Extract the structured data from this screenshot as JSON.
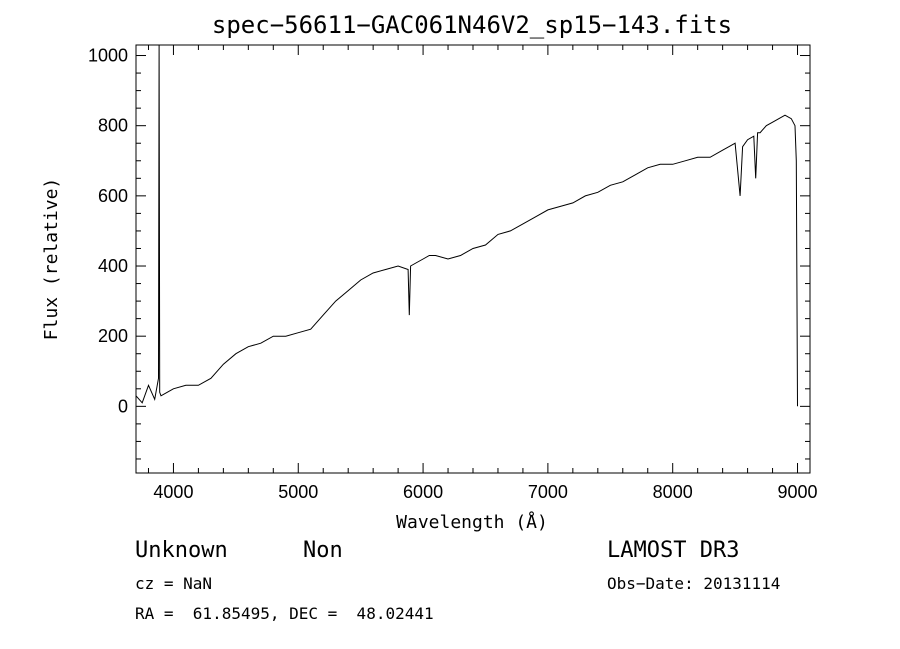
{
  "chart_data": {
    "type": "line",
    "title": "spec−56611−GAC061N46V2_sp15−143.fits",
    "xlabel": "Wavelength (Å)",
    "ylabel": "Flux (relative)",
    "xlim": [
      3700,
      9100
    ],
    "ylim": [
      -190,
      1030
    ],
    "x_ticks": [
      4000,
      5000,
      6000,
      7000,
      8000,
      9000
    ],
    "y_ticks": [
      0,
      200,
      400,
      600,
      800,
      1000
    ],
    "grid": false,
    "series": [
      {
        "x": [
          3700,
          3750,
          3800,
          3850,
          3880,
          3885,
          3890,
          3900,
          3950,
          4000,
          4100,
          4200,
          4300,
          4400,
          4500,
          4600,
          4700,
          4800,
          4900,
          5000,
          5100,
          5200,
          5300,
          5400,
          5500,
          5600,
          5700,
          5800,
          5880,
          5890,
          5900,
          5950,
          6000,
          6050,
          6100,
          6200,
          6300,
          6400,
          6500,
          6600,
          6700,
          6800,
          6900,
          7000,
          7100,
          7200,
          7300,
          7400,
          7500,
          7600,
          7700,
          7800,
          7900,
          8000,
          8100,
          8200,
          8300,
          8400,
          8450,
          8500,
          8540,
          8560,
          8600,
          8650,
          8665,
          8680,
          8700,
          8750,
          8800,
          8850,
          8900,
          8950,
          8980,
          8990,
          9000
        ],
        "y": [
          30,
          10,
          60,
          20,
          80,
          1030,
          40,
          30,
          40,
          50,
          60,
          60,
          80,
          120,
          150,
          170,
          180,
          200,
          200,
          210,
          220,
          260,
          300,
          330,
          360,
          380,
          390,
          400,
          390,
          260,
          400,
          410,
          420,
          430,
          430,
          420,
          430,
          450,
          460,
          490,
          500,
          520,
          540,
          560,
          570,
          580,
          600,
          610,
          630,
          640,
          660,
          680,
          690,
          690,
          700,
          710,
          710,
          730,
          740,
          750,
          600,
          740,
          760,
          770,
          650,
          780,
          780,
          800,
          810,
          820,
          830,
          820,
          800,
          700,
          0
        ]
      }
    ]
  },
  "info": {
    "classification": "Unknown",
    "subclass": "Non",
    "survey": "LAMOST DR3",
    "redshift": "cz = NaN",
    "obs_date": "Obs−Date: 20131114",
    "coords": "RA =  61.85495, DEC =  48.02441"
  }
}
